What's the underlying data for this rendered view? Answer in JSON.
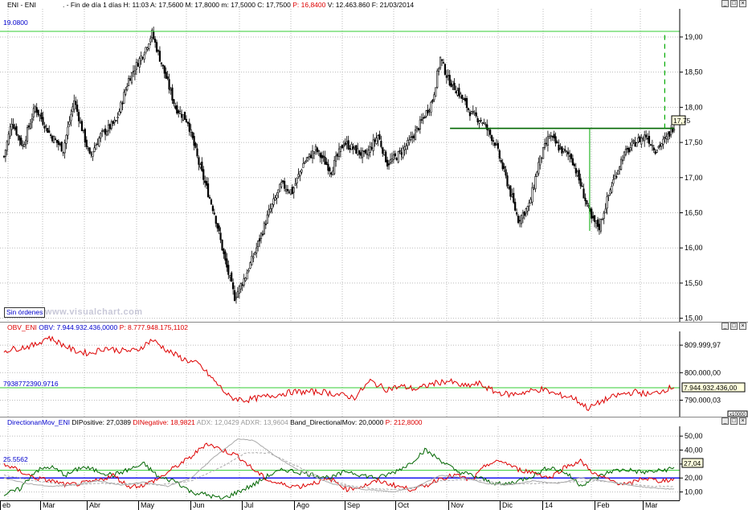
{
  "main": {
    "symbol": "ENI - ENI",
    "info_line": [
      {
        "t": ". - Fin de día 1 días",
        "c": "#000"
      },
      {
        "t": "H: 11:03",
        "c": "#000"
      },
      {
        "t": "A: 17,5600",
        "c": "#000"
      },
      {
        "t": "M: 17,8000",
        "c": "#000"
      },
      {
        "t": "m: 17,5000",
        "c": "#000"
      },
      {
        "t": "C: 17,7500",
        "c": "#000"
      },
      {
        "t": "P: 16,8400",
        "c": "#dd0000"
      },
      {
        "t": "V: 12.463.860",
        "c": "#000"
      },
      {
        "t": "F: 21/03/2014",
        "c": "#000"
      }
    ],
    "hline_label": "19.0800",
    "last_badge": "17,75",
    "sin_ordenes": "Sin órdenes",
    "watermark": "www.visualchart.com"
  },
  "obv": {
    "title": "OBV_ENI",
    "obv_text": "OBV: 7.944.932.436,0000",
    "p_text": "P: 8.777.948.175,1102",
    "hline_label": "7938772390.9716",
    "last_badge": "7.944.932.436,00",
    "scale_tag": "x10000"
  },
  "dm": {
    "title": "DirectionanMov_ENI",
    "items": [
      {
        "t": "DIPositive: 27,0389",
        "c": "#000"
      },
      {
        "t": "DINegative: 18,9821",
        "c": "#dd0000"
      },
      {
        "t": "ADX: 12,0429",
        "c": "#999"
      },
      {
        "t": "ADXR: 13,9604",
        "c": "#999"
      },
      {
        "t": "Band_DirectionalMov: 20,0000",
        "c": "#000"
      },
      {
        "t": "P: 212,8000",
        "c": "#dd0000"
      }
    ],
    "hline_label": "25.5562",
    "last_badge": "27,04"
  },
  "x_axis": [
    "eb",
    "Mar",
    "Abr",
    "May",
    "Jun",
    "Jul",
    "Ago",
    "Sep",
    "Oct",
    "Nov",
    "Dic",
    "14",
    "Feb",
    "Mar"
  ],
  "chart_data": [
    {
      "type": "candlestick",
      "title": "ENI - ENI",
      "y_ticks": [
        "19,00",
        "18,50",
        "18,00",
        "17,50",
        "17,00",
        "16,50",
        "16,00",
        "15,50",
        "15,00"
      ],
      "ylim": [
        14.95,
        19.4
      ],
      "horizontal_line": 19.08,
      "neckline": 17.7,
      "anchors": [
        [
          0,
          17.3
        ],
        [
          5,
          17.8
        ],
        [
          12,
          17.45
        ],
        [
          20,
          18.0
        ],
        [
          30,
          17.6
        ],
        [
          38,
          17.4
        ],
        [
          45,
          18.1
        ],
        [
          55,
          17.3
        ],
        [
          62,
          17.6
        ],
        [
          72,
          17.8
        ],
        [
          80,
          18.4
        ],
        [
          90,
          18.8
        ],
        [
          95,
          19.05
        ],
        [
          100,
          18.7
        ],
        [
          110,
          18.0
        ],
        [
          118,
          17.8
        ],
        [
          125,
          17.2
        ],
        [
          135,
          16.5
        ],
        [
          142,
          15.8
        ],
        [
          148,
          15.3
        ],
        [
          155,
          15.6
        ],
        [
          162,
          16.0
        ],
        [
          170,
          16.5
        ],
        [
          178,
          16.9
        ],
        [
          185,
          16.8
        ],
        [
          192,
          17.2
        ],
        [
          200,
          17.4
        ],
        [
          210,
          17.1
        ],
        [
          218,
          17.5
        ],
        [
          225,
          17.4
        ],
        [
          232,
          17.3
        ],
        [
          240,
          17.6
        ],
        [
          246,
          17.2
        ],
        [
          252,
          17.3
        ],
        [
          260,
          17.5
        ],
        [
          268,
          17.8
        ],
        [
          275,
          18.1
        ],
        [
          280,
          18.7
        ],
        [
          285,
          18.4
        ],
        [
          292,
          18.2
        ],
        [
          300,
          17.9
        ],
        [
          307,
          17.8
        ],
        [
          315,
          17.5
        ],
        [
          322,
          17.0
        ],
        [
          330,
          16.4
        ],
        [
          337,
          16.6
        ],
        [
          343,
          17.2
        ],
        [
          350,
          17.6
        ],
        [
          357,
          17.4
        ],
        [
          364,
          17.3
        ],
        [
          370,
          16.9
        ],
        [
          377,
          16.4
        ],
        [
          382,
          16.3
        ],
        [
          390,
          16.9
        ],
        [
          397,
          17.3
        ],
        [
          405,
          17.5
        ],
        [
          412,
          17.6
        ],
        [
          418,
          17.4
        ],
        [
          425,
          17.55
        ],
        [
          430,
          17.75
        ]
      ],
      "n_bars": 431
    },
    {
      "type": "line",
      "title": "OBV_ENI",
      "y_ticks": [
        "809.999,97",
        "800.000,00",
        "790.000,03"
      ],
      "series": [
        {
          "name": "OBV",
          "color": "#dd0000"
        }
      ],
      "anchors": [
        [
          0,
          808
        ],
        [
          10,
          809
        ],
        [
          20,
          810
        ],
        [
          28,
          813
        ],
        [
          35,
          811
        ],
        [
          45,
          808
        ],
        [
          55,
          807
        ],
        [
          65,
          809
        ],
        [
          75,
          808
        ],
        [
          85,
          808
        ],
        [
          95,
          812
        ],
        [
          105,
          808
        ],
        [
          115,
          805
        ],
        [
          125,
          803
        ],
        [
          135,
          797
        ],
        [
          145,
          791
        ],
        [
          155,
          790
        ],
        [
          165,
          791
        ],
        [
          175,
          792
        ],
        [
          185,
          793
        ],
        [
          195,
          793
        ],
        [
          205,
          793
        ],
        [
          215,
          792
        ],
        [
          225,
          791
        ],
        [
          235,
          797
        ],
        [
          245,
          794
        ],
        [
          255,
          795
        ],
        [
          265,
          794
        ],
        [
          275,
          796
        ],
        [
          285,
          797
        ],
        [
          295,
          795
        ],
        [
          305,
          796
        ],
        [
          315,
          793
        ],
        [
          325,
          792
        ],
        [
          335,
          793
        ],
        [
          345,
          794
        ],
        [
          355,
          792
        ],
        [
          365,
          791
        ],
        [
          375,
          787
        ],
        [
          385,
          790
        ],
        [
          395,
          792
        ],
        [
          405,
          793
        ],
        [
          415,
          792
        ],
        [
          425,
          794
        ],
        [
          430,
          795
        ]
      ]
    },
    {
      "type": "line",
      "title": "DirectionanMov_ENI",
      "y_ticks": [
        "50,00",
        "40,00",
        "30,00",
        "20,00",
        "10,00"
      ],
      "band": 20,
      "series": [
        {
          "name": "DIPositive",
          "color": "#006600",
          "anchors": [
            [
              0,
              8
            ],
            [
              10,
              12
            ],
            [
              20,
              25
            ],
            [
              30,
              28
            ],
            [
              40,
              22
            ],
            [
              50,
              28
            ],
            [
              60,
              25
            ],
            [
              70,
              22
            ],
            [
              80,
              26
            ],
            [
              90,
              30
            ],
            [
              100,
              20
            ],
            [
              110,
              18
            ],
            [
              120,
              10
            ],
            [
              130,
              8
            ],
            [
              140,
              5
            ],
            [
              150,
              10
            ],
            [
              160,
              15
            ],
            [
              170,
              22
            ],
            [
              180,
              26
            ],
            [
              190,
              24
            ],
            [
              200,
              22
            ],
            [
              210,
              20
            ],
            [
              220,
              25
            ],
            [
              230,
              22
            ],
            [
              240,
              20
            ],
            [
              250,
              24
            ],
            [
              260,
              30
            ],
            [
              270,
              40
            ],
            [
              280,
              33
            ],
            [
              290,
              25
            ],
            [
              300,
              22
            ],
            [
              310,
              18
            ],
            [
              320,
              15
            ],
            [
              330,
              18
            ],
            [
              340,
              22
            ],
            [
              350,
              28
            ],
            [
              360,
              24
            ],
            [
              370,
              15
            ],
            [
              380,
              20
            ],
            [
              390,
              25
            ],
            [
              400,
              26
            ],
            [
              410,
              24
            ],
            [
              420,
              25
            ],
            [
              430,
              27
            ]
          ]
        },
        {
          "name": "DINegative",
          "color": "#dd0000",
          "anchors": [
            [
              0,
              30
            ],
            [
              10,
              25
            ],
            [
              20,
              20
            ],
            [
              30,
              18
            ],
            [
              40,
              15
            ],
            [
              50,
              16
            ],
            [
              60,
              18
            ],
            [
              70,
              22
            ],
            [
              80,
              14
            ],
            [
              90,
              15
            ],
            [
              100,
              20
            ],
            [
              110,
              28
            ],
            [
              120,
              35
            ],
            [
              130,
              45
            ],
            [
              140,
              40
            ],
            [
              150,
              36
            ],
            [
              160,
              26
            ],
            [
              170,
              18
            ],
            [
              180,
              15
            ],
            [
              190,
              14
            ],
            [
              200,
              17
            ],
            [
              210,
              19
            ],
            [
              220,
              12
            ],
            [
              230,
              14
            ],
            [
              240,
              18
            ],
            [
              250,
              15
            ],
            [
              260,
              12
            ],
            [
              270,
              14
            ],
            [
              280,
              20
            ],
            [
              290,
              22
            ],
            [
              300,
              18
            ],
            [
              310,
              30
            ],
            [
              320,
              32
            ],
            [
              330,
              26
            ],
            [
              340,
              24
            ],
            [
              350,
              20
            ],
            [
              360,
              28
            ],
            [
              370,
              32
            ],
            [
              380,
              22
            ],
            [
              390,
              18
            ],
            [
              400,
              15
            ],
            [
              410,
              20
            ],
            [
              420,
              18
            ],
            [
              430,
              19
            ]
          ]
        },
        {
          "name": "ADX",
          "color": "#aaaaaa",
          "anchors": [
            [
              0,
              20
            ],
            [
              15,
              16
            ],
            [
              30,
              14
            ],
            [
              45,
              15
            ],
            [
              60,
              18
            ],
            [
              75,
              15
            ],
            [
              90,
              17
            ],
            [
              105,
              14
            ],
            [
              120,
              20
            ],
            [
              135,
              35
            ],
            [
              150,
              48
            ],
            [
              160,
              47
            ],
            [
              175,
              35
            ],
            [
              190,
              25
            ],
            [
              210,
              16
            ],
            [
              230,
              12
            ],
            [
              250,
              10
            ],
            [
              265,
              14
            ],
            [
              280,
              22
            ],
            [
              295,
              20
            ],
            [
              310,
              16
            ],
            [
              325,
              15
            ],
            [
              340,
              18
            ],
            [
              355,
              16
            ],
            [
              370,
              20
            ],
            [
              385,
              18
            ],
            [
              400,
              15
            ],
            [
              415,
              13
            ],
            [
              430,
              12
            ]
          ]
        },
        {
          "name": "ADXR",
          "color": "#aaaaaa",
          "dashed": true,
          "anchors": [
            [
              0,
              22
            ],
            [
              20,
              18
            ],
            [
              40,
              15
            ],
            [
              60,
              16
            ],
            [
              80,
              16
            ],
            [
              100,
              15
            ],
            [
              120,
              18
            ],
            [
              140,
              28
            ],
            [
              155,
              38
            ],
            [
              170,
              38
            ],
            [
              185,
              30
            ],
            [
              200,
              22
            ],
            [
              220,
              15
            ],
            [
              240,
              12
            ],
            [
              260,
              12
            ],
            [
              280,
              18
            ],
            [
              300,
              19
            ],
            [
              320,
              16
            ],
            [
              340,
              16
            ],
            [
              360,
              17
            ],
            [
              380,
              18
            ],
            [
              400,
              16
            ],
            [
              415,
              14
            ],
            [
              430,
              14
            ]
          ]
        }
      ]
    }
  ]
}
